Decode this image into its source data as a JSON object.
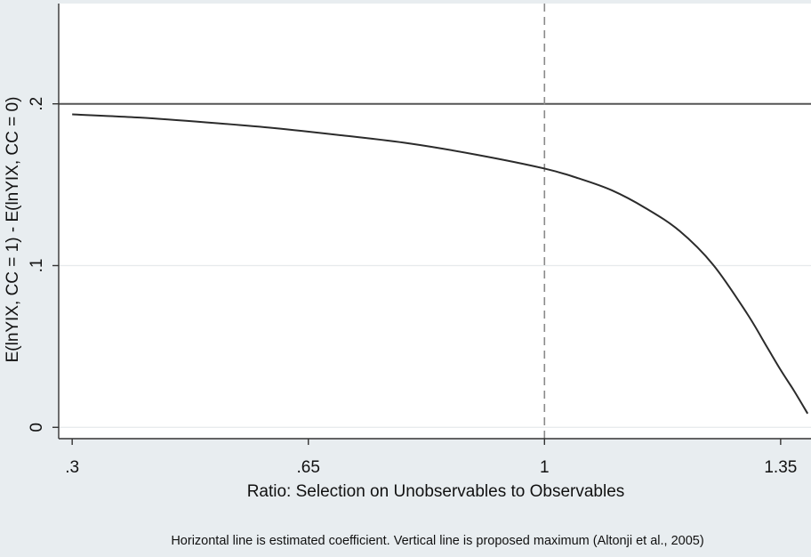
{
  "chart_data": {
    "type": "line",
    "xlabel": "Ratio: Selection on Unobservables to Observables",
    "ylabel": "E(lnYIX, CC = 1) - E(lnYIX, CC = 0)",
    "note": "Horizontal line is estimated coefficient.  Vertical line is proposed maximum (Altonji et al., 2005)",
    "x_ticks": [
      {
        "value": 0.3,
        "label": ".3"
      },
      {
        "value": 0.65,
        "label": ".65"
      },
      {
        "value": 1.0,
        "label": "1"
      },
      {
        "value": 1.35,
        "label": "1.35"
      }
    ],
    "y_ticks": [
      {
        "value": 0.0,
        "label": "0"
      },
      {
        "value": 0.1,
        "label": ".1"
      },
      {
        "value": 0.2,
        "label": ".2"
      }
    ],
    "xlim": [
      0.28,
      1.395
    ],
    "ylim": [
      -0.007,
      0.262
    ],
    "grid": true,
    "reference_lines": {
      "horizontal_y": 0.2,
      "vertical_x": 1.0,
      "vertical_style": "dashed"
    },
    "series": [
      {
        "x": [
          0.3,
          0.4,
          0.5,
          0.6,
          0.7,
          0.8,
          0.9,
          1.0,
          1.05,
          1.1,
          1.15,
          1.2,
          1.25,
          1.3,
          1.33,
          1.35,
          1.37,
          1.39
        ],
        "y": [
          0.1935,
          0.1915,
          0.1885,
          0.185,
          0.1805,
          0.1755,
          0.1685,
          0.16,
          0.154,
          0.1465,
          0.1355,
          0.1215,
          0.1005,
          0.0705,
          0.0495,
          0.0355,
          0.0225,
          0.0085
        ]
      }
    ],
    "colors": {
      "background": "#e8edf0",
      "plot_background": "#ffffff",
      "line": "#2b2b2b",
      "grid": "#e6eaec",
      "reference_line": "#555555"
    }
  }
}
